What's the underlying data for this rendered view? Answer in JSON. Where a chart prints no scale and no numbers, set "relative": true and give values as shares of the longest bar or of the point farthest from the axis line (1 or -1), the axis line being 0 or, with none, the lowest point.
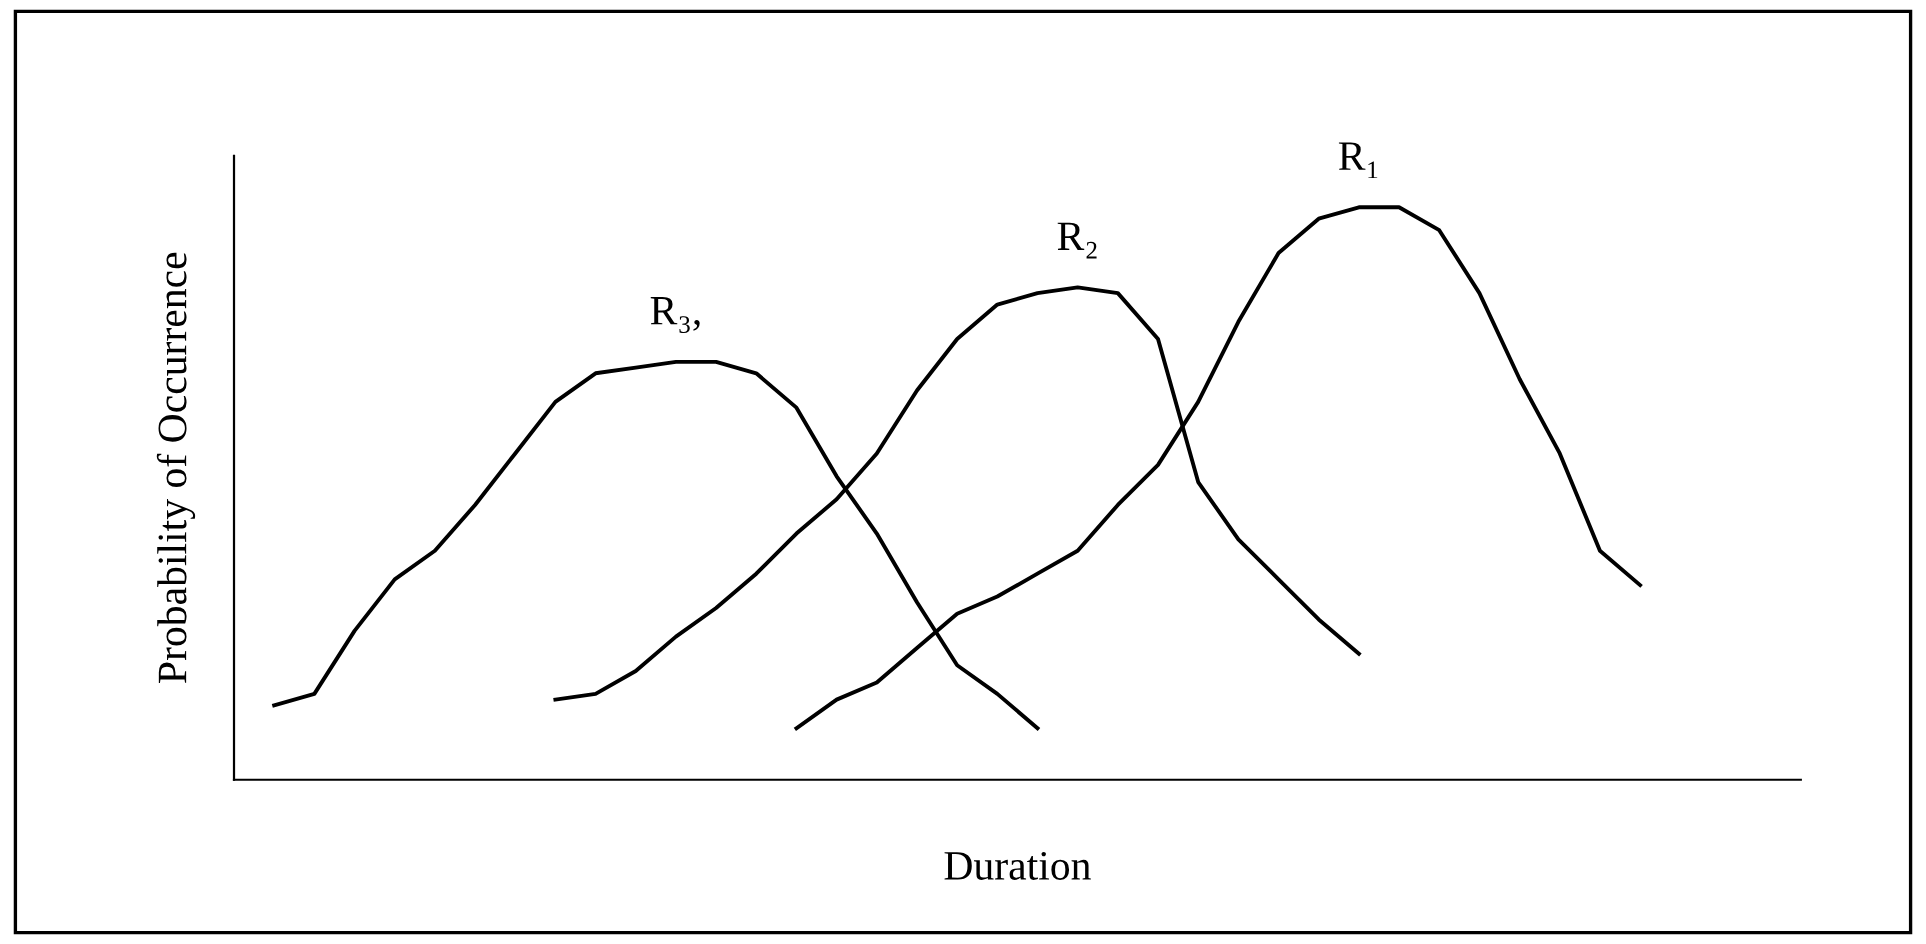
{
  "chart_data": {
    "type": "line",
    "relative": true,
    "xlabel": "Duration",
    "ylabel": "Probability of Occurrence",
    "categories": [
      null,
      null,
      null,
      null,
      null,
      null,
      null,
      null,
      null,
      null,
      null,
      null,
      null,
      null,
      null,
      null,
      null,
      null,
      null,
      null,
      null,
      null,
      null,
      null,
      null,
      null,
      null,
      null,
      null,
      null,
      null,
      null,
      null,
      null,
      null,
      null,
      null,
      null,
      null,
      null
    ],
    "series": [
      {
        "name": "R₃,",
        "color": "#000000",
        "values": [
          null,
          0.13,
          0.15,
          0.26,
          0.35,
          0.4,
          0.48,
          0.57,
          0.66,
          0.71,
          0.72,
          0.73,
          0.73,
          0.71,
          0.65,
          0.53,
          0.43,
          0.31,
          0.2,
          0.15,
          0.09,
          null,
          null,
          null,
          null,
          null,
          null,
          null,
          null,
          null,
          null,
          null,
          null,
          null,
          null,
          null,
          null,
          null,
          null,
          null
        ]
      },
      {
        "name": "R₂",
        "color": "#000000",
        "values": [
          null,
          null,
          null,
          null,
          null,
          null,
          null,
          null,
          0.14,
          0.15,
          0.19,
          0.25,
          0.3,
          0.36,
          0.43,
          0.49,
          0.57,
          0.68,
          0.77,
          0.83,
          0.85,
          0.86,
          0.85,
          0.77,
          0.52,
          0.42,
          0.35,
          0.28,
          0.22,
          null,
          null,
          null,
          null,
          null,
          null,
          null,
          null,
          null,
          null,
          null
        ]
      },
      {
        "name": "R₁",
        "color": "#000000",
        "values": [
          null,
          null,
          null,
          null,
          null,
          null,
          null,
          null,
          null,
          null,
          null,
          null,
          null,
          null,
          0.09,
          0.14,
          0.17,
          0.23,
          0.29,
          0.32,
          0.36,
          0.4,
          0.48,
          0.55,
          0.66,
          0.8,
          0.92,
          0.98,
          1.0,
          1.0,
          0.96,
          0.85,
          0.7,
          0.57,
          0.4,
          0.34,
          null,
          null,
          null,
          null
        ]
      }
    ],
    "legend": false,
    "grid": false,
    "marker": "none",
    "line_style": "solid"
  }
}
